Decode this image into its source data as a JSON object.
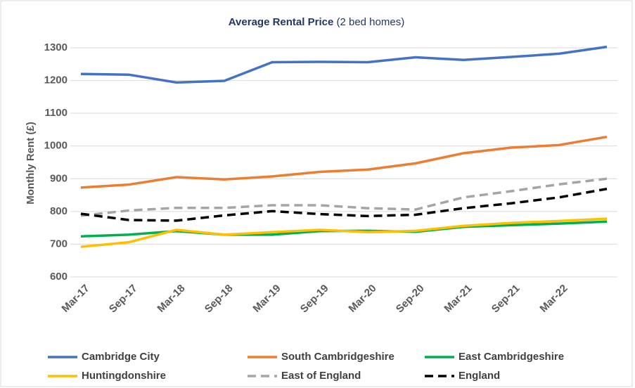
{
  "chart_data": {
    "type": "line",
    "title": "Average Rental Price",
    "subtitle": "(2 bed homes)",
    "y_label": "Monthly Rent (£)",
    "categories": [
      "Mar-17",
      "Sep-17",
      "Mar-18",
      "Sep-18",
      "Mar-19",
      "Sep-19",
      "Mar-20",
      "Sep-20",
      "Mar-21",
      "Sep-21",
      "Mar-22",
      null
    ],
    "series": [
      {
        "name": "Cambridge City",
        "color": "#4472c4",
        "line_style": "solid",
        "values": [
          1220,
          1218,
          1194,
          1199,
          1256,
          1257,
          1256,
          1271,
          1263,
          1272,
          1282,
          1303
        ]
      },
      {
        "name": "South Cambridgeshire",
        "color": "#ed7d31",
        "line_style": "solid",
        "values": [
          873,
          882,
          905,
          898,
          907,
          921,
          928,
          947,
          978,
          995,
          1003,
          1028
        ]
      },
      {
        "name": "East Cambridgeshire",
        "color": "#00b050",
        "line_style": "solid",
        "values": [
          724,
          729,
          740,
          729,
          729,
          740,
          741,
          738,
          753,
          758,
          763,
          769
        ]
      },
      {
        "name": "Huntingdonshire",
        "color": "#ffc000",
        "line_style": "solid",
        "values": [
          692,
          706,
          744,
          729,
          737,
          744,
          737,
          741,
          756,
          765,
          771,
          778
        ]
      },
      {
        "name": "East of England",
        "color": "#a5a5a5",
        "line_style": "dashed",
        "values": [
          787,
          803,
          811,
          811,
          819,
          819,
          810,
          806,
          843,
          862,
          883,
          900
        ]
      },
      {
        "name": "England",
        "color": "#000000",
        "line_style": "dashed",
        "values": [
          793,
          774,
          772,
          788,
          801,
          792,
          786,
          790,
          810,
          825,
          843,
          869
        ]
      }
    ],
    "ylim": [
      600,
      1300
    ],
    "yticks": [
      600,
      700,
      800,
      900,
      1000,
      1100,
      1200,
      1300
    ],
    "grid": true,
    "legend": "bottom"
  }
}
